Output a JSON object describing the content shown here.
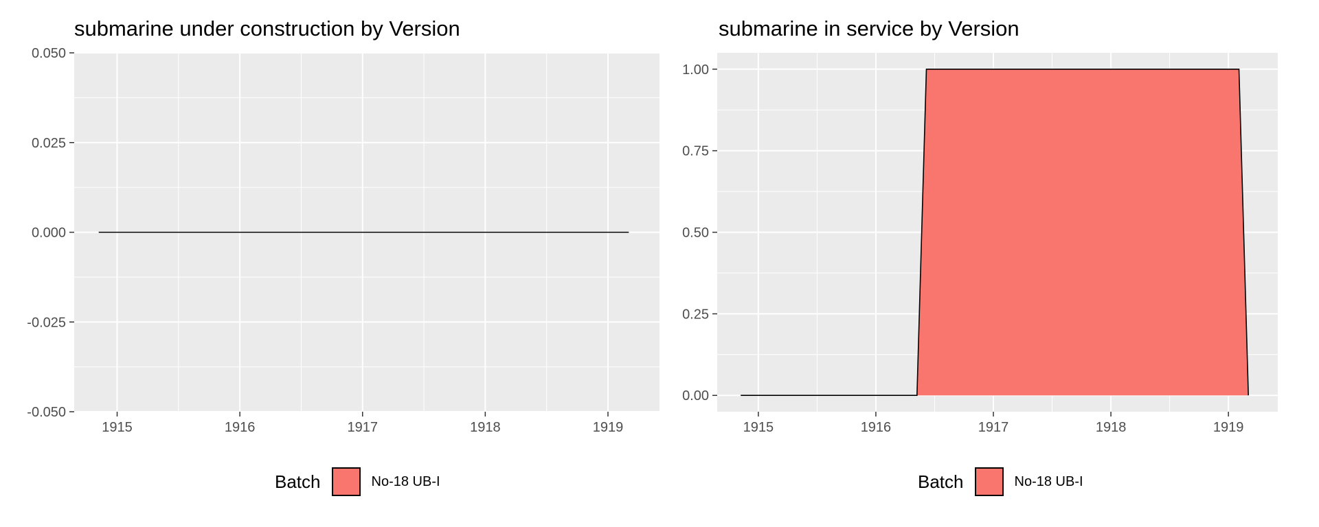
{
  "chart_data": [
    {
      "type": "area",
      "title": "submarine under construction by Version",
      "xlabel": "",
      "ylabel": "",
      "xlim": [
        1914.65,
        1919.42
      ],
      "ylim": [
        -0.05,
        0.05
      ],
      "x_ticks": [
        1915,
        1916,
        1917,
        1918,
        1919
      ],
      "y_ticks": [
        -0.05,
        -0.025,
        0,
        0.025,
        0.05
      ],
      "y_tick_labels": [
        "-0.050",
        "-0.025",
        "0.000",
        "0.025",
        "0.050"
      ],
      "grid": true,
      "legend_position": "bottom",
      "legend_title": "Batch",
      "series": [
        {
          "name": "No-18 UB-I",
          "color": "#F8766D",
          "points": [
            [
              1914.85,
              0
            ],
            [
              1916.35,
              0
            ],
            [
              1916.45,
              0
            ],
            [
              1919.08,
              0
            ],
            [
              1919.17,
              0
            ]
          ]
        }
      ]
    },
    {
      "type": "area",
      "title": "submarine in service by Version",
      "xlabel": "",
      "ylabel": "",
      "xlim": [
        1914.65,
        1919.42
      ],
      "ylim": [
        -0.05,
        1.05
      ],
      "x_ticks": [
        1915,
        1916,
        1917,
        1918,
        1919
      ],
      "y_ticks": [
        0,
        0.25,
        0.5,
        0.75,
        1
      ],
      "y_tick_labels": [
        "0.00",
        "0.25",
        "0.50",
        "0.75",
        "1.00"
      ],
      "grid": true,
      "legend_position": "bottom",
      "legend_title": "Batch",
      "series": [
        {
          "name": "No-18 UB-I",
          "color": "#F8766D",
          "points": [
            [
              1914.85,
              0
            ],
            [
              1916.35,
              0
            ],
            [
              1916.43,
              1
            ],
            [
              1919.09,
              1
            ],
            [
              1919.17,
              0
            ]
          ]
        }
      ]
    }
  ]
}
